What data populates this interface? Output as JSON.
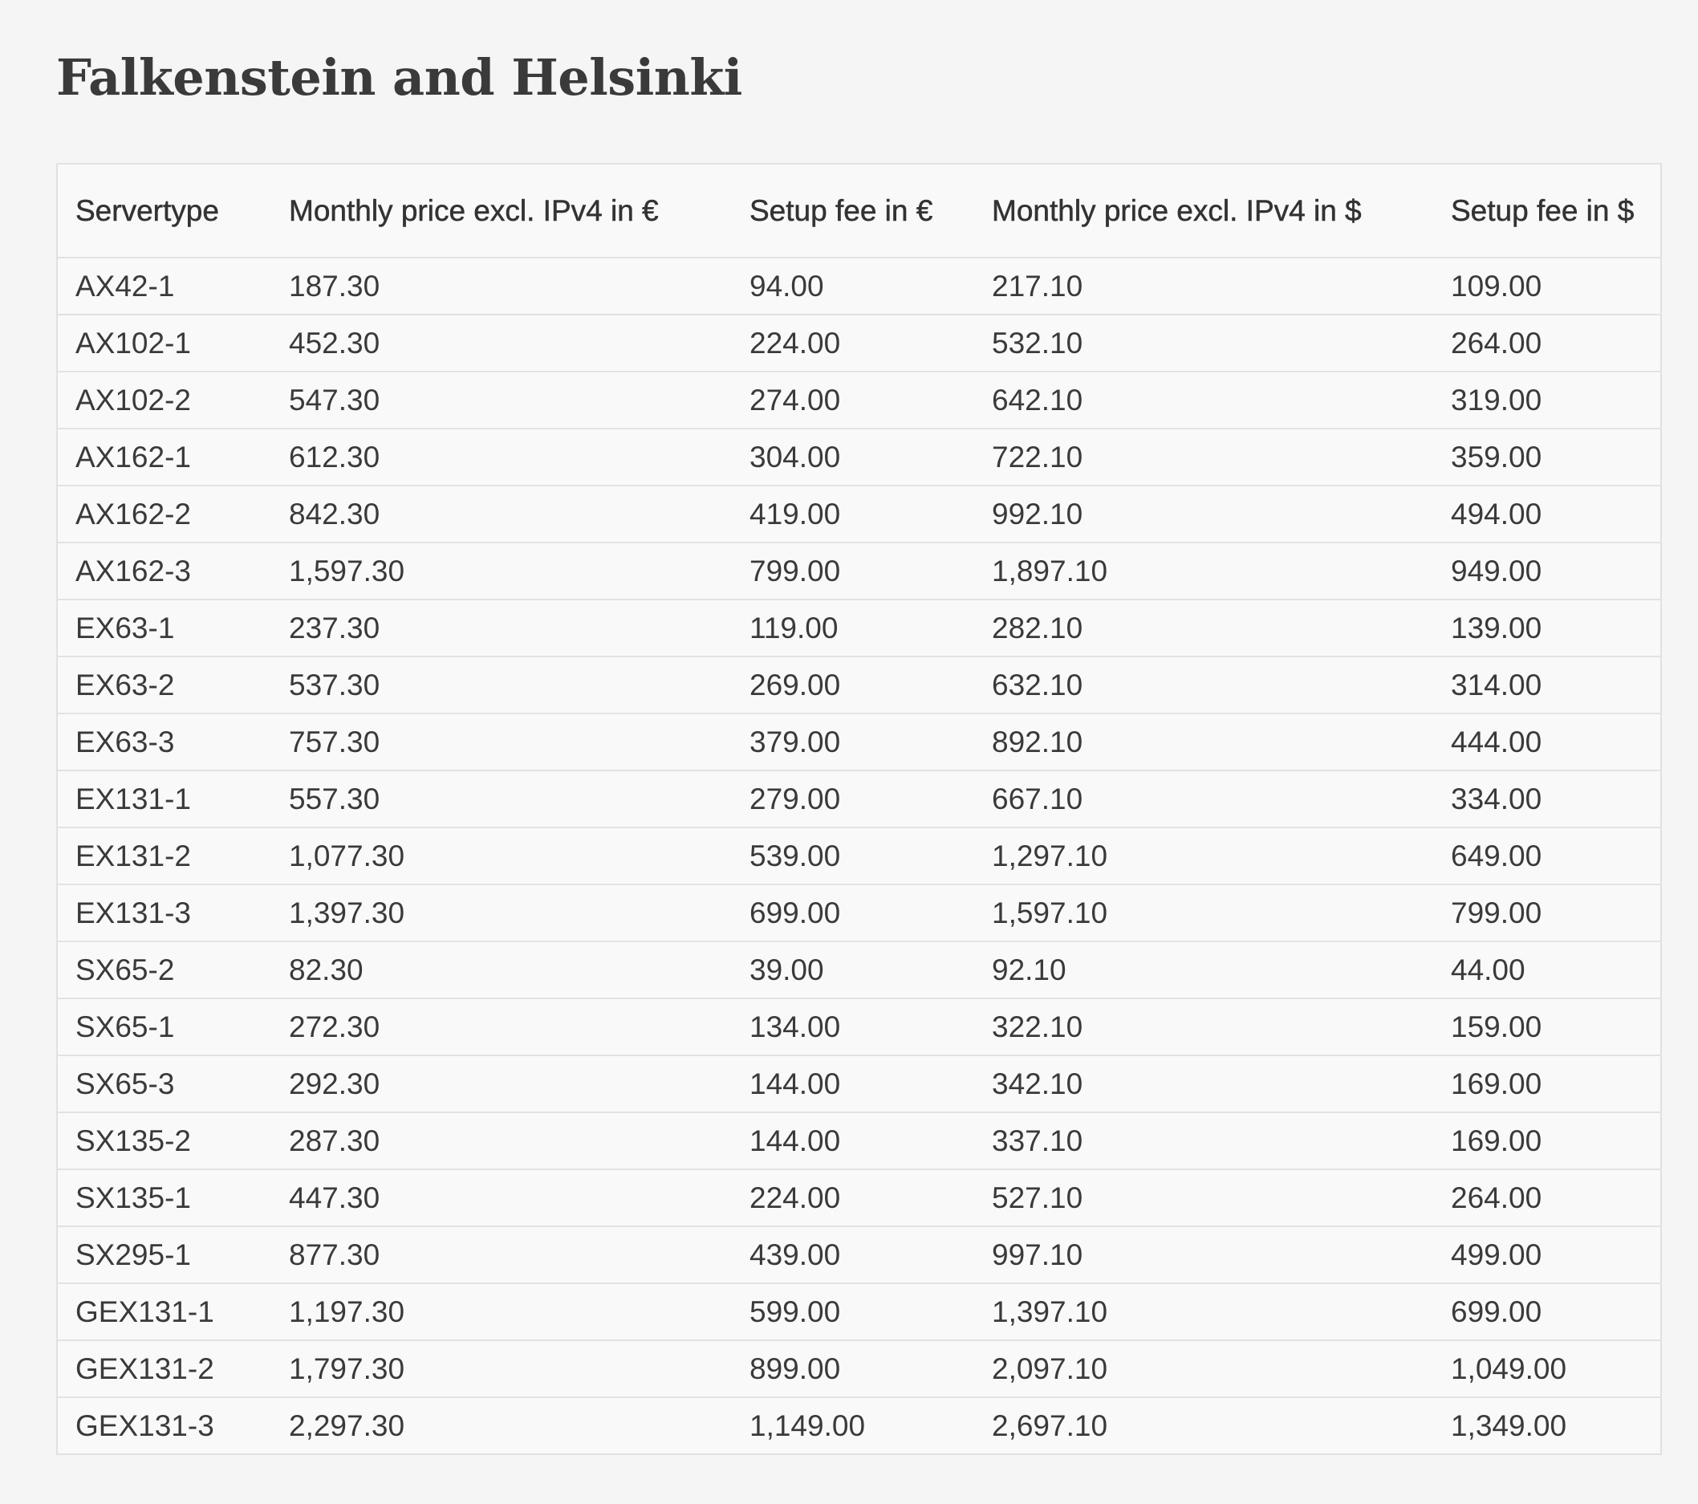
{
  "header": {
    "title": "Falkenstein and Helsinki"
  },
  "table": {
    "columns": [
      "Servertype",
      "Monthly price excl. IPv4 in €",
      "Setup fee in €",
      "Monthly price excl. IPv4 in $",
      "Setup fee in $"
    ],
    "rows": [
      [
        "AX42-1",
        "187.30",
        "94.00",
        "217.10",
        "109.00"
      ],
      [
        "AX102-1",
        "452.30",
        "224.00",
        "532.10",
        "264.00"
      ],
      [
        "AX102-2",
        "547.30",
        "274.00",
        "642.10",
        "319.00"
      ],
      [
        "AX162-1",
        "612.30",
        "304.00",
        "722.10",
        "359.00"
      ],
      [
        "AX162-2",
        "842.30",
        "419.00",
        "992.10",
        "494.00"
      ],
      [
        "AX162-3",
        "1,597.30",
        "799.00",
        "1,897.10",
        "949.00"
      ],
      [
        "EX63-1",
        "237.30",
        "119.00",
        "282.10",
        "139.00"
      ],
      [
        "EX63-2",
        "537.30",
        "269.00",
        "632.10",
        "314.00"
      ],
      [
        "EX63-3",
        "757.30",
        "379.00",
        "892.10",
        "444.00"
      ],
      [
        "EX131-1",
        "557.30",
        "279.00",
        "667.10",
        "334.00"
      ],
      [
        "EX131-2",
        "1,077.30",
        "539.00",
        "1,297.10",
        "649.00"
      ],
      [
        "EX131-3",
        "1,397.30",
        "699.00",
        "1,597.10",
        "799.00"
      ],
      [
        "SX65-2",
        "82.30",
        "39.00",
        "92.10",
        "44.00"
      ],
      [
        "SX65-1",
        "272.30",
        "134.00",
        "322.10",
        "159.00"
      ],
      [
        "SX65-3",
        "292.30",
        "144.00",
        "342.10",
        "169.00"
      ],
      [
        "SX135-2",
        "287.30",
        "144.00",
        "337.10",
        "169.00"
      ],
      [
        "SX135-1",
        "447.30",
        "224.00",
        "527.10",
        "264.00"
      ],
      [
        "SX295-1",
        "877.30",
        "439.00",
        "997.10",
        "499.00"
      ],
      [
        "GEX131-1",
        "1,197.30",
        "599.00",
        "1,397.10",
        "699.00"
      ],
      [
        "GEX131-2",
        "1,797.30",
        "899.00",
        "2,097.10",
        "1,049.00"
      ],
      [
        "GEX131-3",
        "2,297.30",
        "1,149.00",
        "2,697.10",
        "1,349.00"
      ]
    ]
  }
}
